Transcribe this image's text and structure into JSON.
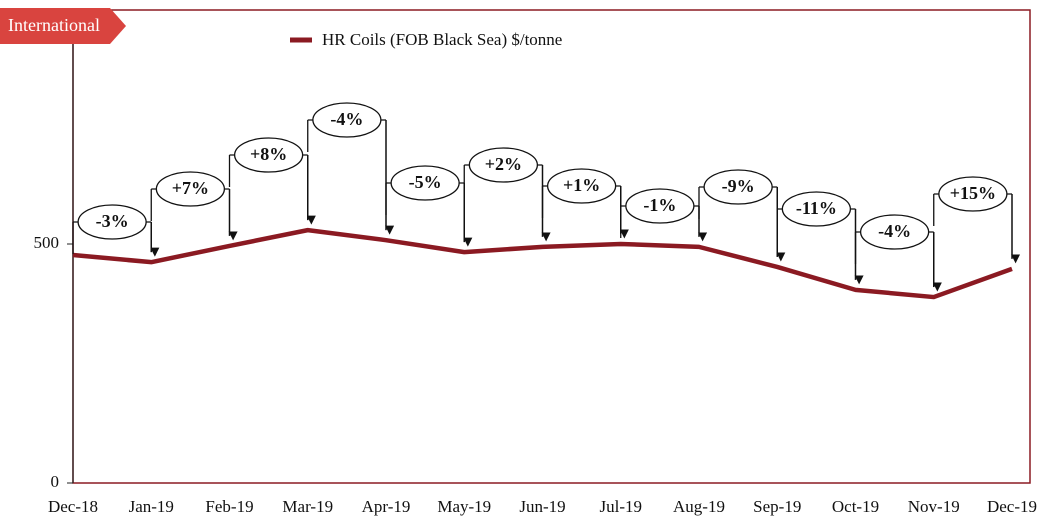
{
  "chart_data": {
    "type": "line",
    "title": "International",
    "categories": [
      "Dec-18",
      "Jan-19",
      "Feb-19",
      "Mar-19",
      "Apr-19",
      "May-19",
      "Jun-19",
      "Jul-19",
      "Aug-19",
      "Sep-19",
      "Oct-19",
      "Nov-19",
      "Dec-19"
    ],
    "series": [
      {
        "name": "HR Coils (FOB Black Sea) $/tonne",
        "color": "#8b1a22",
        "values": [
          477,
          462,
          496,
          529,
          508,
          483,
          494,
          500,
          494,
          452,
          404,
          389,
          448
        ]
      }
    ],
    "annotations": [
      "-3%",
      "+7%",
      "+8%",
      "-4%",
      "-5%",
      "+2%",
      "+1%",
      "-1%",
      "-9%",
      "-11%",
      "-4%",
      "+15%"
    ],
    "ylim": [
      0,
      1000
    ],
    "yticks": [
      0,
      500
    ],
    "legend": "top"
  }
}
